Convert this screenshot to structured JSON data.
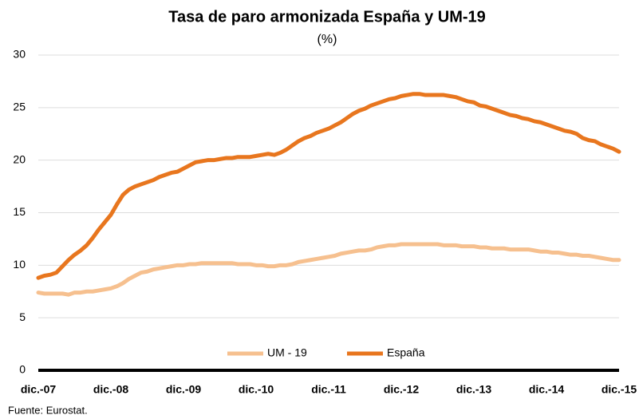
{
  "chart_data": {
    "type": "line",
    "title": "Tasa de paro armonizada España y UM-19",
    "subtitle": "(%)",
    "source": "Fuente: Eurostat.",
    "categories": [
      "dic.-07",
      null,
      null,
      null,
      null,
      null,
      null,
      null,
      null,
      null,
      null,
      null,
      "dic.-08",
      null,
      null,
      null,
      null,
      null,
      null,
      null,
      null,
      null,
      null,
      null,
      "dic.-09",
      null,
      null,
      null,
      null,
      null,
      null,
      null,
      null,
      null,
      null,
      null,
      "dic.-10",
      null,
      null,
      null,
      null,
      null,
      null,
      null,
      null,
      null,
      null,
      null,
      "dic.-11",
      null,
      null,
      null,
      null,
      null,
      null,
      null,
      null,
      null,
      null,
      null,
      "dic.-12",
      null,
      null,
      null,
      null,
      null,
      null,
      null,
      null,
      null,
      null,
      null,
      "dic.-13",
      null,
      null,
      null,
      null,
      null,
      null,
      null,
      null,
      null,
      null,
      null,
      "dic.-14",
      null,
      null,
      null,
      null,
      null,
      null,
      null,
      null,
      null,
      null,
      null,
      "dic.-15"
    ],
    "series": [
      {
        "name": "UM - 19",
        "color": "#f6c08f",
        "values": [
          7.4,
          7.3,
          7.3,
          7.3,
          7.3,
          7.2,
          7.4,
          7.4,
          7.5,
          7.5,
          7.6,
          7.7,
          7.8,
          8.0,
          8.3,
          8.7,
          9.0,
          9.3,
          9.4,
          9.6,
          9.7,
          9.8,
          9.9,
          10.0,
          10.0,
          10.1,
          10.1,
          10.2,
          10.2,
          10.2,
          10.2,
          10.2,
          10.2,
          10.1,
          10.1,
          10.1,
          10.0,
          10.0,
          9.9,
          9.9,
          10.0,
          10.0,
          10.1,
          10.3,
          10.4,
          10.5,
          10.6,
          10.7,
          10.8,
          10.9,
          11.1,
          11.2,
          11.3,
          11.4,
          11.4,
          11.5,
          11.7,
          11.8,
          11.9,
          11.9,
          12.0,
          12.0,
          12.0,
          12.0,
          12.0,
          12.0,
          12.0,
          11.9,
          11.9,
          11.9,
          11.8,
          11.8,
          11.8,
          11.7,
          11.7,
          11.6,
          11.6,
          11.6,
          11.5,
          11.5,
          11.5,
          11.5,
          11.4,
          11.3,
          11.3,
          11.2,
          11.2,
          11.1,
          11.0,
          11.0,
          10.9,
          10.9,
          10.8,
          10.7,
          10.6,
          10.5,
          10.5
        ]
      },
      {
        "name": "España",
        "color": "#e8761e",
        "values": [
          8.8,
          9.0,
          9.1,
          9.3,
          9.9,
          10.5,
          11.0,
          11.4,
          11.9,
          12.6,
          13.4,
          14.1,
          14.8,
          15.8,
          16.7,
          17.2,
          17.5,
          17.7,
          17.9,
          18.1,
          18.4,
          18.6,
          18.8,
          18.9,
          19.2,
          19.5,
          19.8,
          19.9,
          20.0,
          20.0,
          20.1,
          20.2,
          20.2,
          20.3,
          20.3,
          20.3,
          20.4,
          20.5,
          20.6,
          20.5,
          20.7,
          21.0,
          21.4,
          21.8,
          22.1,
          22.3,
          22.6,
          22.8,
          23.0,
          23.3,
          23.6,
          24.0,
          24.4,
          24.7,
          24.9,
          25.2,
          25.4,
          25.6,
          25.8,
          25.9,
          26.1,
          26.2,
          26.3,
          26.3,
          26.2,
          26.2,
          26.2,
          26.2,
          26.1,
          26.0,
          25.8,
          25.6,
          25.5,
          25.2,
          25.1,
          24.9,
          24.7,
          24.5,
          24.3,
          24.2,
          24.0,
          23.9,
          23.7,
          23.6,
          23.4,
          23.2,
          23.0,
          22.8,
          22.7,
          22.5,
          22.1,
          21.9,
          21.8,
          21.5,
          21.3,
          21.1,
          20.8
        ]
      }
    ],
    "ylim": [
      0,
      30
    ],
    "yticks": [
      0,
      5,
      10,
      15,
      20,
      25,
      30
    ],
    "grid": true,
    "legend": "bottom"
  }
}
